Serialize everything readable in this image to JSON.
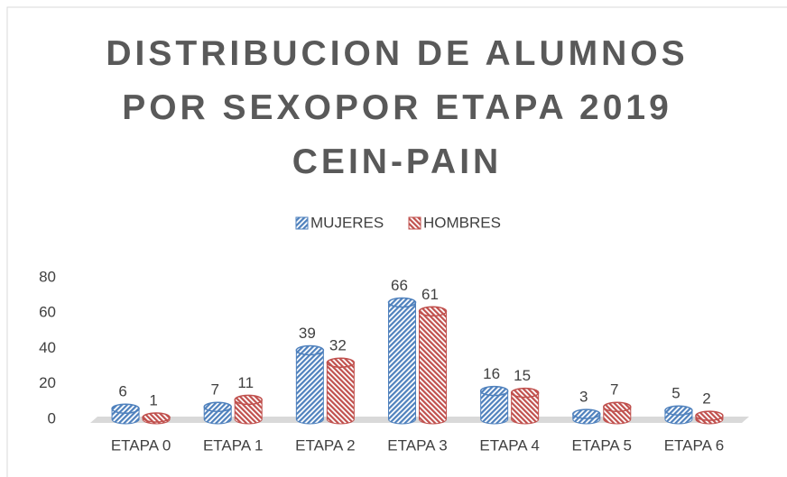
{
  "chart_data": {
    "type": "bar3d",
    "title": "DISTRIBUCION DE ALUMNOS POR SEXOPOR ETAPA 2019 CEIN-PAIN",
    "categories": [
      "ETAPA 0",
      "ETAPA 1",
      "ETAPA 2",
      "ETAPA 3",
      "ETAPA 4",
      "ETAPA 5",
      "ETAPA 6"
    ],
    "series": [
      {
        "name": "MUJERES",
        "color": "#4f81bd",
        "values": [
          6,
          7,
          39,
          66,
          16,
          3,
          5
        ]
      },
      {
        "name": "HOMBRES",
        "color": "#c0504d",
        "values": [
          1,
          11,
          32,
          61,
          15,
          7,
          2
        ]
      }
    ],
    "ylim": [
      0,
      80
    ],
    "yticks": [
      0,
      20,
      40,
      60,
      80
    ],
    "legend": "top",
    "grid": false
  }
}
